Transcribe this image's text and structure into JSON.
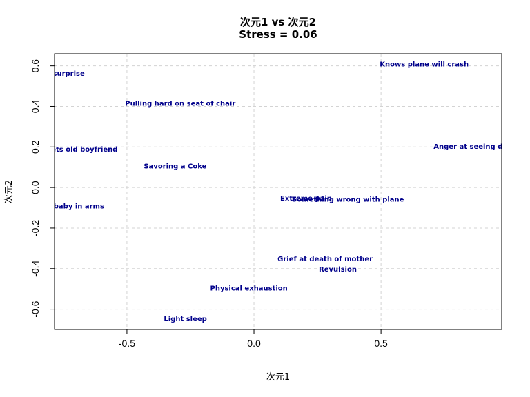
{
  "chart_data": {
    "type": "scatter",
    "title": "次元1 vs 次元2",
    "subtitle": "Stress = 0.06",
    "xlabel": "次元1",
    "ylabel": "次元2",
    "xlim": [
      -0.785,
      0.975
    ],
    "ylim": [
      -0.7,
      0.66
    ],
    "xticks": [
      {
        "value": -0.5,
        "label": "-0.5"
      },
      {
        "value": 0.0,
        "label": "0.0"
      },
      {
        "value": 0.5,
        "label": "0.5"
      }
    ],
    "yticks": [
      {
        "value": 0.6,
        "label": "0.6"
      },
      {
        "value": 0.4,
        "label": "0.4"
      },
      {
        "value": 0.2,
        "label": "0.2"
      },
      {
        "value": 0.0,
        "label": "0.0"
      },
      {
        "value": -0.2,
        "label": "-0.2"
      },
      {
        "value": -0.4,
        "label": "-0.4"
      },
      {
        "value": -0.6,
        "label": "-0.6"
      }
    ],
    "grid": true,
    "points": [
      {
        "label": "Pleasant surprise",
        "x": -0.8,
        "y": 0.565
      },
      {
        "label": "Knows plane will crash",
        "x": 0.67,
        "y": 0.61
      },
      {
        "label": "Pulling hard on seat of chair",
        "x": -0.29,
        "y": 0.417
      },
      {
        "label": "Unexpectedly meets old boyfriend",
        "x": -0.8,
        "y": 0.19
      },
      {
        "label": "Anger at seeing dog beaten",
        "x": 0.92,
        "y": 0.205
      },
      {
        "label": "Savoring a Coke",
        "x": -0.31,
        "y": 0.107
      },
      {
        "label": "Extreme pain",
        "x": 0.205,
        "y": -0.05
      },
      {
        "label": "Something wrong with plane",
        "x": 0.37,
        "y": -0.055
      },
      {
        "label": "Maternal love-baby in arms",
        "x": -0.8,
        "y": -0.09
      },
      {
        "label": "Grief at death of mother",
        "x": 0.28,
        "y": -0.35
      },
      {
        "label": "Revulsion",
        "x": 0.33,
        "y": -0.4
      },
      {
        "label": "Physical exhaustion",
        "x": -0.02,
        "y": -0.495
      },
      {
        "label": "Light sleep",
        "x": -0.27,
        "y": -0.645
      }
    ]
  }
}
